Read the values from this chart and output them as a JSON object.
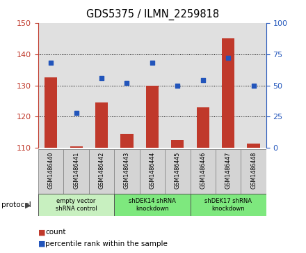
{
  "title": "GDS5375 / ILMN_2259818",
  "samples": [
    "GSM1486440",
    "GSM1486441",
    "GSM1486442",
    "GSM1486443",
    "GSM1486444",
    "GSM1486445",
    "GSM1486446",
    "GSM1486447",
    "GSM1486448"
  ],
  "count_values": [
    132.5,
    110.5,
    124.5,
    114.5,
    130.0,
    112.5,
    123.0,
    145.0,
    111.5
  ],
  "percentile_values": [
    68,
    28,
    56,
    52,
    68,
    50,
    54,
    72,
    50
  ],
  "ylim_left": [
    110,
    150
  ],
  "ylim_right": [
    0,
    100
  ],
  "yticks_left": [
    110,
    120,
    130,
    140,
    150
  ],
  "yticks_right": [
    0,
    25,
    50,
    75,
    100
  ],
  "bar_color": "#c0392b",
  "dot_color": "#2255bb",
  "bar_width": 0.5,
  "grid_color": "#000000",
  "protocols": [
    {
      "label": "empty vector\nshRNA control",
      "start": 0,
      "end": 3,
      "color": "#c8f0c0"
    },
    {
      "label": "shDEK14 shRNA\nknockdown",
      "start": 3,
      "end": 6,
      "color": "#7ee87e"
    },
    {
      "label": "shDEK17 shRNA\nknockdown",
      "start": 6,
      "end": 9,
      "color": "#7ee87e"
    }
  ],
  "protocol_label": "protocol",
  "legend_count_label": "count",
  "legend_percentile_label": "percentile rank within the sample",
  "background_color": "#ffffff",
  "plot_bg_color": "#e0e0e0",
  "title_fontsize": 10.5,
  "tick_fontsize": 8,
  "sample_fontsize": 5.8
}
